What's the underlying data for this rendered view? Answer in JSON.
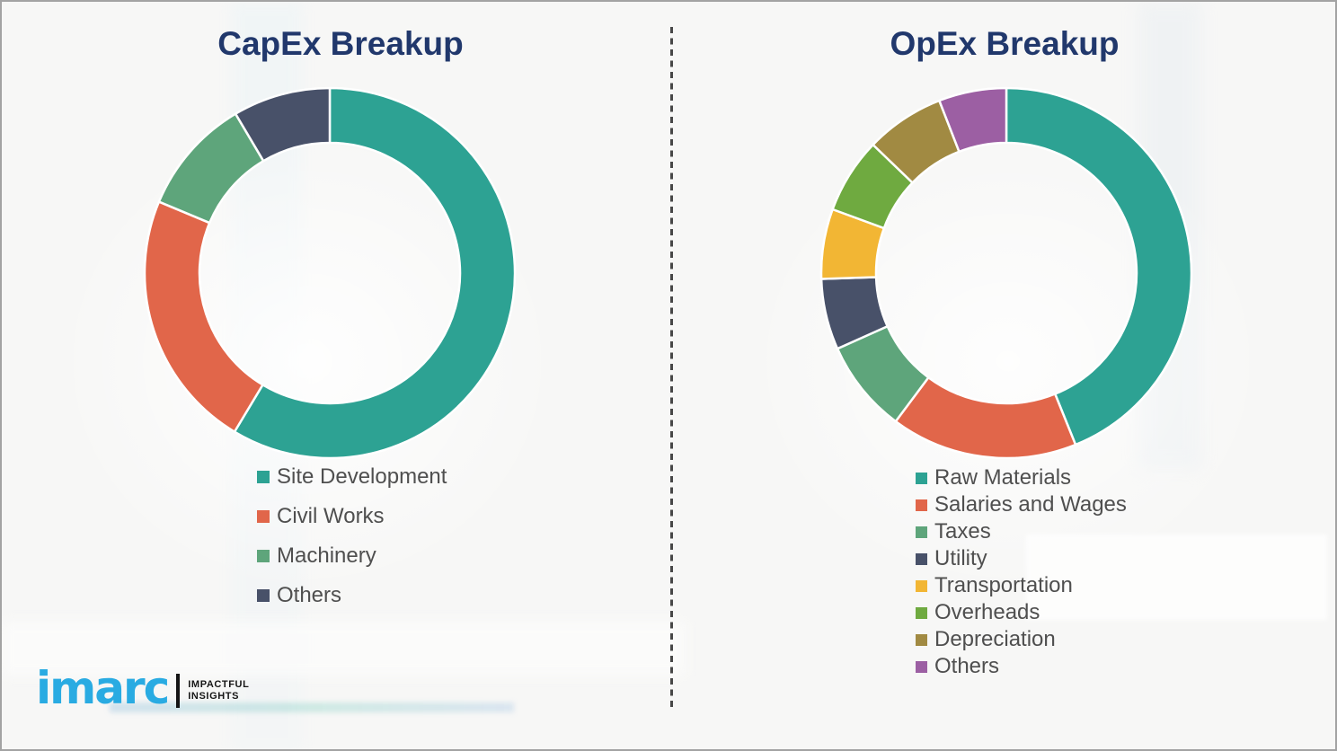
{
  "theme": {
    "title_color": "#21386C",
    "legend_text_color": "#4F4F4F",
    "background_color": "#F7F7F6",
    "divider_color": "#474747",
    "segment_separator_color": "#FFFFFF",
    "brand_blue": "#29ABE2"
  },
  "chart_data": [
    {
      "type": "donut",
      "title": "CapEx Breakup",
      "legend_position": "bottom-left",
      "start_angle_deg": 0,
      "direction": "clockwise",
      "segments": [
        {
          "label": "Site Development",
          "value": 58.6,
          "color": "#2DA293"
        },
        {
          "label": "Civil Works",
          "value": 22.7,
          "color": "#E1664A"
        },
        {
          "label": "Machinery",
          "value": 10.2,
          "color": "#5EA57B"
        },
        {
          "label": "Others",
          "value": 8.5,
          "color": "#485169"
        }
      ]
    },
    {
      "type": "donut",
      "title": "OpEx Breakup",
      "legend_position": "bottom-left",
      "start_angle_deg": 0,
      "direction": "clockwise",
      "segments": [
        {
          "label": "Raw Materials",
          "value": 43.9,
          "color": "#2DA293"
        },
        {
          "label": "Salaries and Wages",
          "value": 16.3,
          "color": "#E1664A"
        },
        {
          "label": "Taxes",
          "value": 8.1,
          "color": "#5EA57B"
        },
        {
          "label": "Utility",
          "value": 6.2,
          "color": "#485169"
        },
        {
          "label": "Transportation",
          "value": 6.1,
          "color": "#F2B634"
        },
        {
          "label": "Overheads",
          "value": 6.6,
          "color": "#6FAA40"
        },
        {
          "label": "Depreciation",
          "value": 6.9,
          "color": "#A18A42"
        },
        {
          "label": "Others",
          "value": 5.9,
          "color": "#9C5FA3"
        }
      ]
    }
  ],
  "logo": {
    "brand": "imarc",
    "tagline_line1": "IMPACTFUL",
    "tagline_line2": "INSIGHTS"
  }
}
